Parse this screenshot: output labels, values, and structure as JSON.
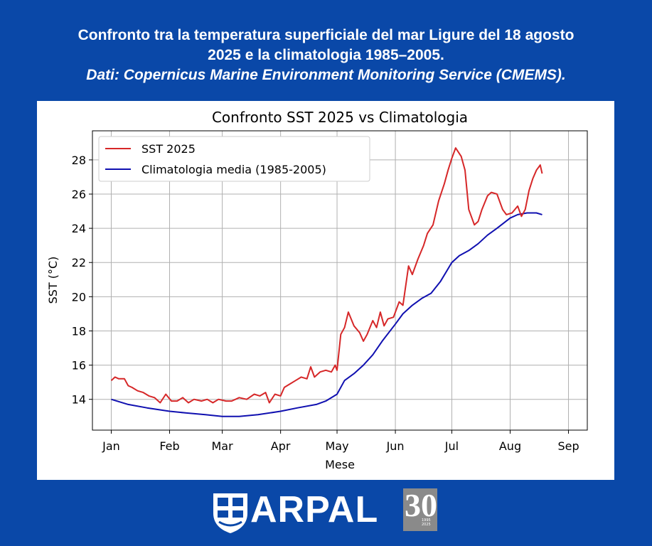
{
  "header": {
    "line1": "Confronto tra la temperatura superficiale del mar Ligure del 18 agosto",
    "line2": "2025 e la climatologia 1985–2005.",
    "line3": "Dati: Copernicus Marine Environment Monitoring Service (CMEMS)."
  },
  "colors": {
    "background": "#0a48a8",
    "sst": "#d62728",
    "clim": "#1010b0",
    "grid": "#b0b0b0"
  },
  "chart_data": {
    "type": "line",
    "title": "Confronto SST 2025 vs Climatologia",
    "xlabel": "Mese",
    "ylabel": "SST (°C)",
    "xlim": [
      "2024-12-22",
      "2025-09-11"
    ],
    "ylim": [
      12.2,
      29.7
    ],
    "xticks": [
      "Jan",
      "Feb",
      "Mar",
      "Apr",
      "May",
      "Jun",
      "Jul",
      "Aug",
      "Sep"
    ],
    "xtick_dates": [
      "2025-01-01",
      "2025-02-01",
      "2025-03-01",
      "2025-04-01",
      "2025-05-01",
      "2025-06-01",
      "2025-07-01",
      "2025-08-01",
      "2025-09-01"
    ],
    "yticks": [
      14,
      16,
      18,
      20,
      22,
      24,
      26,
      28
    ],
    "grid": true,
    "legend_position": "top-left",
    "series": [
      {
        "name": "SST 2025",
        "color": "#d62728",
        "points": [
          [
            "2025-01-01",
            15.1
          ],
          [
            "2025-01-03",
            15.3
          ],
          [
            "2025-01-05",
            15.2
          ],
          [
            "2025-01-08",
            15.2
          ],
          [
            "2025-01-10",
            14.8
          ],
          [
            "2025-01-12",
            14.7
          ],
          [
            "2025-01-15",
            14.5
          ],
          [
            "2025-01-18",
            14.4
          ],
          [
            "2025-01-21",
            14.2
          ],
          [
            "2025-01-24",
            14.1
          ],
          [
            "2025-01-27",
            13.8
          ],
          [
            "2025-01-30",
            14.3
          ],
          [
            "2025-02-02",
            13.9
          ],
          [
            "2025-02-05",
            13.9
          ],
          [
            "2025-02-08",
            14.1
          ],
          [
            "2025-02-11",
            13.8
          ],
          [
            "2025-02-14",
            14.0
          ],
          [
            "2025-02-18",
            13.9
          ],
          [
            "2025-02-21",
            14.0
          ],
          [
            "2025-02-24",
            13.8
          ],
          [
            "2025-02-27",
            14.0
          ],
          [
            "2025-03-03",
            13.9
          ],
          [
            "2025-03-06",
            13.9
          ],
          [
            "2025-03-10",
            14.1
          ],
          [
            "2025-03-14",
            14.0
          ],
          [
            "2025-03-18",
            14.3
          ],
          [
            "2025-03-21",
            14.2
          ],
          [
            "2025-03-24",
            14.4
          ],
          [
            "2025-03-26",
            13.8
          ],
          [
            "2025-03-29",
            14.3
          ],
          [
            "2025-04-01",
            14.2
          ],
          [
            "2025-04-03",
            14.7
          ],
          [
            "2025-04-06",
            14.9
          ],
          [
            "2025-04-09",
            15.1
          ],
          [
            "2025-04-12",
            15.3
          ],
          [
            "2025-04-15",
            15.2
          ],
          [
            "2025-04-17",
            15.9
          ],
          [
            "2025-04-19",
            15.3
          ],
          [
            "2025-04-22",
            15.6
          ],
          [
            "2025-04-25",
            15.7
          ],
          [
            "2025-04-28",
            15.6
          ],
          [
            "2025-04-30",
            16.0
          ],
          [
            "2025-05-01",
            15.7
          ],
          [
            "2025-05-03",
            17.8
          ],
          [
            "2025-05-05",
            18.2
          ],
          [
            "2025-05-07",
            19.1
          ],
          [
            "2025-05-10",
            18.3
          ],
          [
            "2025-05-13",
            17.9
          ],
          [
            "2025-05-15",
            17.4
          ],
          [
            "2025-05-17",
            17.8
          ],
          [
            "2025-05-20",
            18.6
          ],
          [
            "2025-05-22",
            18.2
          ],
          [
            "2025-05-24",
            19.1
          ],
          [
            "2025-05-26",
            18.3
          ],
          [
            "2025-05-28",
            18.7
          ],
          [
            "2025-05-31",
            18.8
          ],
          [
            "2025-06-03",
            19.7
          ],
          [
            "2025-06-05",
            19.5
          ],
          [
            "2025-06-08",
            21.8
          ],
          [
            "2025-06-10",
            21.3
          ],
          [
            "2025-06-13",
            22.2
          ],
          [
            "2025-06-16",
            23.0
          ],
          [
            "2025-06-18",
            23.7
          ],
          [
            "2025-06-21",
            24.2
          ],
          [
            "2025-06-24",
            25.6
          ],
          [
            "2025-06-27",
            26.6
          ],
          [
            "2025-06-29",
            27.4
          ],
          [
            "2025-07-01",
            28.1
          ],
          [
            "2025-07-03",
            28.7
          ],
          [
            "2025-07-06",
            28.2
          ],
          [
            "2025-07-08",
            27.4
          ],
          [
            "2025-07-10",
            25.1
          ],
          [
            "2025-07-13",
            24.2
          ],
          [
            "2025-07-15",
            24.4
          ],
          [
            "2025-07-17",
            25.1
          ],
          [
            "2025-07-20",
            25.9
          ],
          [
            "2025-07-22",
            26.1
          ],
          [
            "2025-07-25",
            26.0
          ],
          [
            "2025-07-28",
            25.1
          ],
          [
            "2025-07-30",
            24.8
          ],
          [
            "2025-08-02",
            24.9
          ],
          [
            "2025-08-05",
            25.3
          ],
          [
            "2025-08-07",
            24.7
          ],
          [
            "2025-08-09",
            25.1
          ],
          [
            "2025-08-11",
            26.2
          ],
          [
            "2025-08-13",
            26.9
          ],
          [
            "2025-08-15",
            27.4
          ],
          [
            "2025-08-17",
            27.7
          ],
          [
            "2025-08-18",
            27.2
          ]
        ]
      },
      {
        "name": "Climatologia media (1985-2005)",
        "color": "#1010b0",
        "points": [
          [
            "2025-01-01",
            14.0
          ],
          [
            "2025-01-10",
            13.7
          ],
          [
            "2025-01-20",
            13.5
          ],
          [
            "2025-02-01",
            13.3
          ],
          [
            "2025-02-10",
            13.2
          ],
          [
            "2025-02-20",
            13.1
          ],
          [
            "2025-03-01",
            13.0
          ],
          [
            "2025-03-10",
            13.0
          ],
          [
            "2025-03-20",
            13.1
          ],
          [
            "2025-04-01",
            13.3
          ],
          [
            "2025-04-10",
            13.5
          ],
          [
            "2025-04-20",
            13.7
          ],
          [
            "2025-04-25",
            13.9
          ],
          [
            "2025-05-01",
            14.3
          ],
          [
            "2025-05-05",
            15.1
          ],
          [
            "2025-05-10",
            15.5
          ],
          [
            "2025-05-15",
            16.0
          ],
          [
            "2025-05-20",
            16.6
          ],
          [
            "2025-05-25",
            17.4
          ],
          [
            "2025-06-01",
            18.4
          ],
          [
            "2025-06-05",
            19.0
          ],
          [
            "2025-06-10",
            19.5
          ],
          [
            "2025-06-15",
            19.9
          ],
          [
            "2025-06-20",
            20.2
          ],
          [
            "2025-06-25",
            20.9
          ],
          [
            "2025-07-01",
            22.0
          ],
          [
            "2025-07-05",
            22.4
          ],
          [
            "2025-07-10",
            22.7
          ],
          [
            "2025-07-15",
            23.1
          ],
          [
            "2025-07-20",
            23.6
          ],
          [
            "2025-07-25",
            24.0
          ],
          [
            "2025-08-01",
            24.6
          ],
          [
            "2025-08-05",
            24.8
          ],
          [
            "2025-08-10",
            24.9
          ],
          [
            "2025-08-15",
            24.9
          ],
          [
            "2025-08-18",
            24.8
          ]
        ]
      }
    ]
  },
  "footer": {
    "brand": "ARPAL",
    "anniversary": "30",
    "years": "1995\n2025"
  }
}
